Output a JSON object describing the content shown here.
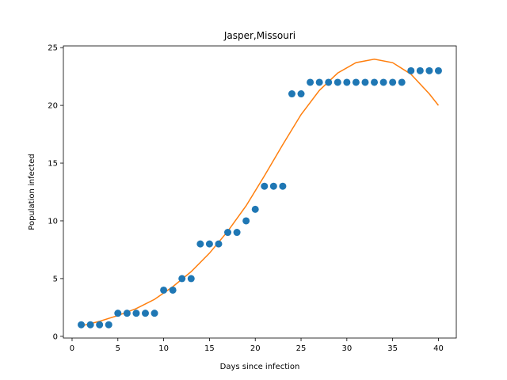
{
  "chart_data": {
    "type": "scatter",
    "title": "Jasper,Missouri",
    "xlabel": "Days since infection",
    "ylabel": "Population infected",
    "xlim": [
      -0.95,
      41.95
    ],
    "ylim": [
      -0.15,
      25.15
    ],
    "xticks": [
      0,
      5,
      10,
      15,
      20,
      25,
      30,
      35,
      40
    ],
    "yticks": [
      0,
      5,
      10,
      15,
      20,
      25
    ],
    "grid": false,
    "series": [
      {
        "kind": "scatter",
        "color": "#1f77b4",
        "x": [
          1,
          2,
          3,
          4,
          5,
          6,
          7,
          8,
          9,
          10,
          11,
          12,
          13,
          14,
          15,
          16,
          17,
          18,
          19,
          20,
          21,
          22,
          23,
          24,
          25,
          26,
          27,
          28,
          29,
          30,
          31,
          32,
          33,
          34,
          35,
          36,
          37,
          38,
          39,
          40
        ],
        "y": [
          1,
          1,
          1,
          1,
          2,
          2,
          2,
          2,
          2,
          4,
          4,
          5,
          5,
          8,
          8,
          8,
          9,
          9,
          10,
          11,
          13,
          13,
          13,
          21,
          21,
          22,
          22,
          22,
          22,
          22,
          22,
          22,
          22,
          22,
          22,
          22,
          23,
          23,
          23,
          23
        ]
      },
      {
        "kind": "line",
        "color": "#ff7f0e",
        "x": [
          1,
          3,
          5,
          7,
          9,
          11,
          13,
          15,
          17,
          19,
          21,
          23,
          25,
          27,
          29,
          31,
          33,
          35,
          37,
          39,
          40
        ],
        "y": [
          0.9,
          1.3,
          1.8,
          2.4,
          3.2,
          4.3,
          5.6,
          7.2,
          9.1,
          11.3,
          13.9,
          16.6,
          19.2,
          21.3,
          22.8,
          23.7,
          24.0,
          23.7,
          22.7,
          21.0,
          20.0
        ]
      }
    ]
  }
}
